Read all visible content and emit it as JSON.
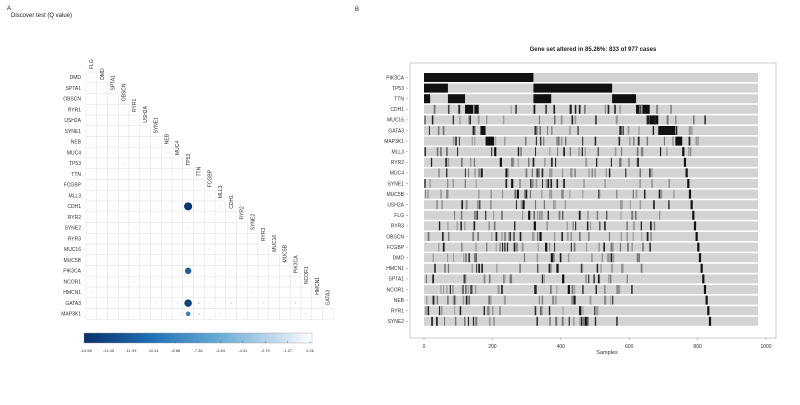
{
  "panels": {
    "a": {
      "letter": "A",
      "title": "Discover test (Q value)"
    },
    "b": {
      "letter": "B",
      "title": "Gene set altered in 85.26%: 833 of 977 cases"
    }
  },
  "chart_data": [
    {
      "type": "heatmap",
      "title": "Discover test (Q value)",
      "layout": "lower-triangular correlation-style bubble matrix",
      "rows": [
        "DMD",
        "SPTA1",
        "OBSCN",
        "RYR1",
        "USH2A",
        "SYNE1",
        "NEB",
        "MUC4",
        "TP53",
        "TTN",
        "FCGBP",
        "MLL3",
        "CDH1",
        "RYR2",
        "SYNE2",
        "RYR3",
        "MUC16",
        "MUC5B",
        "PIK3CA",
        "NCOR1",
        "HMCN1",
        "GATA3",
        "MAP3K1"
      ],
      "columns": [
        "FLG",
        "DMD",
        "SPTA1",
        "OBSCN",
        "RYR1",
        "USH2A",
        "SYNE1",
        "NEB",
        "MUC4",
        "TP53",
        "TTN",
        "FCGBP",
        "MLL3",
        "CDH1",
        "RYR2",
        "SYNE2",
        "RYR3",
        "MUC16",
        "MUC5B",
        "PIK3CA",
        "NCOR1",
        "HMCN1",
        "GATA3"
      ],
      "colorbar": {
        "ticks": [
          "-14.98",
          "-13.45",
          "-11.93",
          "-10.41",
          "-8.88",
          "-7.36",
          "-5.84",
          "-4.31",
          "-2.79",
          "-1.27",
          "0.26"
        ],
        "range": [
          -14.98,
          0.26
        ],
        "low_color": "#08306b",
        "high_color": "#ffffff"
      },
      "notable_cells": [
        {
          "row": "CDH1",
          "column": "TP53",
          "value": -14.5
        },
        {
          "row": "PIK3CA",
          "column": "TP53",
          "value": -11.5
        },
        {
          "row": "GATA3",
          "column": "TP53",
          "value": -13.5
        },
        {
          "row": "MAP3K1",
          "column": "TP53",
          "value": -8.5
        },
        {
          "row": "GATA3",
          "column": "TTN",
          "value": -3.0
        },
        {
          "row": "MAP3K1",
          "column": "TTN",
          "value": -3.0
        },
        {
          "row": "GATA3",
          "column": "CDH1",
          "value": -2.5
        },
        {
          "row": "GATA3",
          "column": "PIK3CA",
          "value": -2.5
        },
        {
          "row": "MAP3K1",
          "column": "NCOR1",
          "value": -2.0
        },
        {
          "row": "GATA3",
          "column": "MUC4",
          "value": -1.5
        },
        {
          "row": "GATA3",
          "column": "SYNE1",
          "value": -1.5
        }
      ]
    },
    {
      "type": "oncoprint",
      "title": "Gene set altered in 85.26%: 833 of 977 cases",
      "xlabel": "Samples",
      "xticks": [
        0,
        200,
        400,
        600,
        800,
        1000
      ],
      "xlim": [
        0,
        977
      ],
      "altered_cases": 833,
      "total_cases": 977,
      "altered_percent": 85.26,
      "genes": [
        "PIK3CA",
        "TP53",
        "TTN",
        "CDH1",
        "MUC16",
        "GATA3",
        "MAP3K1",
        "MLL3",
        "RYR2",
        "MUC4",
        "SYNE1",
        "MUC5B",
        "USH2A",
        "FLG",
        "RYR3",
        "OBSCN",
        "FCGBP",
        "DMD",
        "HMCN1",
        "SPTA1",
        "NCOR1",
        "NEB",
        "RYR1",
        "SYNE2"
      ],
      "main_blocks": [
        {
          "gene": "PIK3CA",
          "start": 0,
          "end": 320
        },
        {
          "gene": "TP53",
          "start": 0,
          "end": 70
        },
        {
          "gene": "TP53",
          "start": 320,
          "end": 550
        },
        {
          "gene": "TTN",
          "start": 0,
          "end": 18
        },
        {
          "gene": "TTN",
          "start": 70,
          "end": 120
        },
        {
          "gene": "TTN",
          "start": 320,
          "end": 372
        },
        {
          "gene": "TTN",
          "start": 550,
          "end": 620
        },
        {
          "gene": "CDH1",
          "start": 120,
          "end": 160
        },
        {
          "gene": "CDH1",
          "start": 620,
          "end": 660
        },
        {
          "gene": "MUC16",
          "start": 660,
          "end": 685
        },
        {
          "gene": "GATA3",
          "start": 165,
          "end": 180
        },
        {
          "gene": "GATA3",
          "start": 685,
          "end": 735
        },
        {
          "gene": "MAP3K1",
          "start": 180,
          "end": 205
        },
        {
          "gene": "MAP3K1",
          "start": 735,
          "end": 755
        }
      ],
      "background_color": "#d3d3d3",
      "alteration_color": "#111111"
    }
  ]
}
